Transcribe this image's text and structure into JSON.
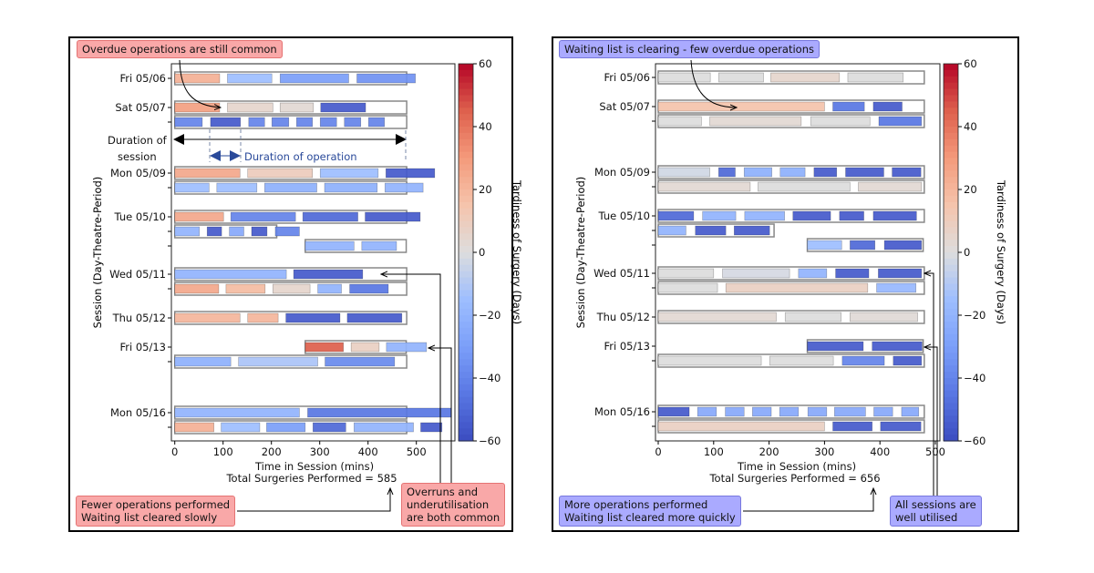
{
  "chart_data": [
    {
      "type": "gantt",
      "xlabel": "Time in Session (mins)",
      "subtitle": "Total Surgeries Performed = 585",
      "ylabel": "Session (Day-Theatre-Period)",
      "xlim": [
        0,
        580
      ],
      "xticks": [
        0,
        100,
        200,
        300,
        400,
        500
      ],
      "colorbar": {
        "label": "Tardiness of Surgery (Days)",
        "range": [
          -60,
          60
        ],
        "ticks": [
          60,
          40,
          20,
          0,
          -20,
          -40,
          -60
        ],
        "colormap": "coolwarm"
      },
      "rows": [
        {
          "label": "Fri 05/06",
          "session": [
            0,
            480
          ],
          "ops": [
            [
              0,
              93,
              22
            ],
            [
              109,
              201,
              -15
            ],
            [
              218,
              360,
              -30
            ],
            [
              377,
              498,
              -35
            ]
          ]
        },
        {
          "label": "Sat 05/07",
          "session": [
            0,
            480
          ],
          "ops": [
            [
              0,
              93,
              28
            ],
            [
              109,
              203,
              5
            ],
            [
              218,
              287,
              3
            ],
            [
              302,
              395,
              -55
            ]
          ]
        },
        {
          "label": "",
          "session": [
            0,
            480
          ],
          "ops": [
            [
              0,
              57,
              -40
            ],
            [
              74,
              136,
              -55
            ],
            [
              153,
              186,
              -40
            ],
            [
              201,
              236,
              -40
            ],
            [
              252,
              285,
              -40
            ],
            [
              301,
              335,
              -40
            ],
            [
              351,
              385,
              -40
            ],
            [
              401,
              434,
              -40
            ]
          ]
        },
        {
          "label": "Mon 05/09",
          "session": [
            0,
            480
          ],
          "ops": [
            [
              0,
              135,
              25
            ],
            [
              151,
              285,
              10
            ],
            [
              301,
              421,
              -15
            ],
            [
              437,
              538,
              -55
            ]
          ]
        },
        {
          "label": "",
          "session": [
            0,
            480
          ],
          "ops": [
            [
              0,
              71,
              -15
            ],
            [
              87,
              170,
              -15
            ],
            [
              186,
              294,
              -22
            ],
            [
              310,
              419,
              -22
            ],
            [
              435,
              514,
              -20
            ]
          ]
        },
        {
          "label": "Tue 05/10",
          "session": [
            0,
            480
          ],
          "ops": [
            [
              0,
              101,
              25
            ],
            [
              116,
              250,
              -40
            ],
            [
              265,
              379,
              -50
            ],
            [
              394,
              508,
              -55
            ]
          ]
        },
        {
          "label": "",
          "session": [
            0,
            211
          ],
          "ops": [
            [
              0,
              51,
              -20
            ],
            [
              67,
              97,
              -55
            ],
            [
              113,
              143,
              -25
            ],
            [
              159,
              191,
              -55
            ],
            [
              208,
              258,
              -40
            ]
          ]
        },
        {
          "label": "",
          "session": [
            270,
            479
          ],
          "ops": [
            [
              270,
              371,
              -20
            ],
            [
              387,
              459,
              -20
            ]
          ]
        },
        {
          "label": "Wed 05/11",
          "session": [
            0,
            480
          ],
          "ops": [
            [
              0,
              231,
              -20
            ],
            [
              246,
              389,
              -55
            ]
          ]
        },
        {
          "label": "",
          "session": [
            0,
            480
          ],
          "ops": [
            [
              0,
              91,
              25
            ],
            [
              106,
              187,
              18
            ],
            [
              203,
              280,
              5
            ],
            [
              296,
              345,
              -20
            ],
            [
              362,
              442,
              -45
            ]
          ]
        },
        {
          "label": "Thu 05/12",
          "session": [
            0,
            480
          ],
          "ops": [
            [
              0,
              135,
              20
            ],
            [
              151,
              214,
              20
            ],
            [
              230,
              342,
              -55
            ],
            [
              357,
              470,
              -55
            ]
          ]
        },
        {
          "label": "Fri 05/13",
          "session": [
            270,
            479
          ],
          "ops": [
            [
              270,
              349,
              45
            ],
            [
              365,
              423,
              8
            ],
            [
              438,
              521,
              -20
            ]
          ]
        },
        {
          "label": "",
          "session": [
            0,
            480
          ],
          "ops": [
            [
              0,
              116,
              -22
            ],
            [
              132,
              296,
              -12
            ],
            [
              311,
              455,
              -38
            ]
          ]
        },
        {
          "label": "Mon 05/16",
          "session": [
            0,
            480
          ],
          "ops": [
            [
              0,
              258,
              -20
            ],
            [
              275,
              572,
              -45
            ]
          ]
        },
        {
          "label": "",
          "session": [
            0,
            480
          ],
          "ops": [
            [
              0,
              81,
              22
            ],
            [
              96,
              176,
              -15
            ],
            [
              190,
              270,
              -30
            ],
            [
              286,
              354,
              -50
            ],
            [
              371,
              494,
              -20
            ],
            [
              509,
              553,
              -55
            ]
          ]
        }
      ]
    },
    {
      "type": "gantt",
      "xlabel": "Time in Session (mins)",
      "subtitle": "Total Surgeries Performed = 656",
      "ylabel": "Session (Day-Theatre-Period)",
      "xlim": [
        0,
        510
      ],
      "xticks": [
        0,
        100,
        200,
        300,
        400,
        500
      ],
      "colorbar": {
        "label": "Tardiness of Surgery (Days)",
        "range": [
          -60,
          60
        ],
        "ticks": [
          60,
          40,
          20,
          0,
          -20,
          -40,
          -60
        ],
        "colormap": "coolwarm"
      },
      "rows": [
        {
          "label": "Fri 05/06",
          "session": [
            0,
            480
          ],
          "ops": [
            [
              0,
              94,
              0
            ],
            [
              109,
              190,
              0
            ],
            [
              203,
              327,
              5
            ],
            [
              342,
              442,
              0
            ]
          ]
        },
        {
          "label": "Sat 05/07",
          "session": [
            0,
            480
          ],
          "ops": [
            [
              0,
              300,
              15
            ],
            [
              315,
              372,
              -45
            ],
            [
              388,
              440,
              -55
            ]
          ]
        },
        {
          "label": "",
          "session": [
            0,
            480
          ],
          "ops": [
            [
              0,
              78,
              0
            ],
            [
              93,
              258,
              3
            ],
            [
              275,
              382,
              0
            ],
            [
              398,
              475,
              -45
            ]
          ]
        },
        {
          "label": "Mon 05/09",
          "session": [
            0,
            480
          ],
          "ops": [
            [
              0,
              93,
              -3
            ],
            [
              109,
              139,
              -50
            ],
            [
              155,
              205,
              -22
            ],
            [
              220,
              265,
              -22
            ],
            [
              281,
              322,
              -55
            ],
            [
              338,
              407,
              -55
            ],
            [
              422,
              474,
              -55
            ]
          ]
        },
        {
          "label": "",
          "session": [
            0,
            480
          ],
          "ops": [
            [
              0,
              166,
              3
            ],
            [
              180,
              346,
              0
            ],
            [
              361,
              475,
              3
            ]
          ]
        },
        {
          "label": "Tue 05/10",
          "session": [
            0,
            480
          ],
          "ops": [
            [
              0,
              64,
              -50
            ],
            [
              80,
              140,
              -20
            ],
            [
              156,
              228,
              -20
            ],
            [
              243,
              311,
              -55
            ],
            [
              327,
              371,
              -55
            ],
            [
              388,
              466,
              -55
            ]
          ]
        },
        {
          "label": "",
          "session": [
            0,
            209
          ],
          "ops": [
            [
              0,
              50,
              -20
            ],
            [
              67,
              122,
              -55
            ],
            [
              137,
              201,
              -55
            ]
          ]
        },
        {
          "label": "",
          "session": [
            269,
            478
          ],
          "ops": [
            [
              269,
              331,
              -15
            ],
            [
              346,
              391,
              -50
            ],
            [
              408,
              475,
              -55
            ]
          ]
        },
        {
          "label": "Wed 05/11",
          "session": [
            0,
            480
          ],
          "ops": [
            [
              0,
              100,
              0
            ],
            [
              116,
              237,
              -2
            ],
            [
              253,
              304,
              -20
            ],
            [
              320,
              380,
              -55
            ],
            [
              397,
              475,
              -55
            ]
          ]
        },
        {
          "label": "",
          "session": [
            0,
            480
          ],
          "ops": [
            [
              0,
              107,
              0
            ],
            [
              122,
              378,
              8
            ],
            [
              394,
              465,
              -18
            ]
          ]
        },
        {
          "label": "Thu 05/12",
          "session": [
            0,
            480
          ],
          "ops": [
            [
              0,
              213,
              3
            ],
            [
              229,
              330,
              0
            ],
            [
              346,
              468,
              2
            ]
          ]
        },
        {
          "label": "Fri 05/13",
          "session": [
            269,
            478
          ],
          "ops": [
            [
              269,
              370,
              -55
            ],
            [
              386,
              476,
              -55
            ]
          ]
        },
        {
          "label": "",
          "session": [
            0,
            480
          ],
          "ops": [
            [
              0,
              186,
              0
            ],
            [
              201,
              316,
              0
            ],
            [
              332,
              408,
              -40
            ],
            [
              424,
              475,
              -55
            ]
          ]
        },
        {
          "label": "Mon 05/16",
          "session": [
            0,
            480
          ],
          "ops": [
            [
              0,
              56,
              -55
            ],
            [
              71,
              105,
              -25
            ],
            [
              121,
              155,
              -25
            ],
            [
              170,
              204,
              -25
            ],
            [
              219,
              253,
              -25
            ],
            [
              270,
              304,
              -25
            ],
            [
              318,
              374,
              -25
            ],
            [
              389,
              423,
              -25
            ],
            [
              439,
              470,
              -25
            ]
          ]
        },
        {
          "label": "",
          "session": [
            0,
            480
          ],
          "ops": [
            [
              0,
              300,
              8
            ],
            [
              315,
              386,
              -55
            ],
            [
              401,
              474,
              -55
            ]
          ]
        }
      ]
    }
  ],
  "annotations": {
    "left": {
      "top": "Overdue operations are still common",
      "duration_session": "Duration of\nsession",
      "duration_operation": "Duration of operation",
      "bottom_left": "Fewer operations performed\nWaiting list cleared slowly",
      "bottom_right": "Overruns and\nunderutilisation\nare both common"
    },
    "right": {
      "top": "Waiting list is clearing - few overdue operations",
      "bottom_left": "More operations performed\nWaiting list cleared more quickly",
      "bottom_right": "All sessions are\nwell utilised"
    },
    "colors": {
      "red_note": "#f9a8a8",
      "blue_note": "#aaaaff",
      "operation_arrow": "#2a4a9a"
    }
  }
}
